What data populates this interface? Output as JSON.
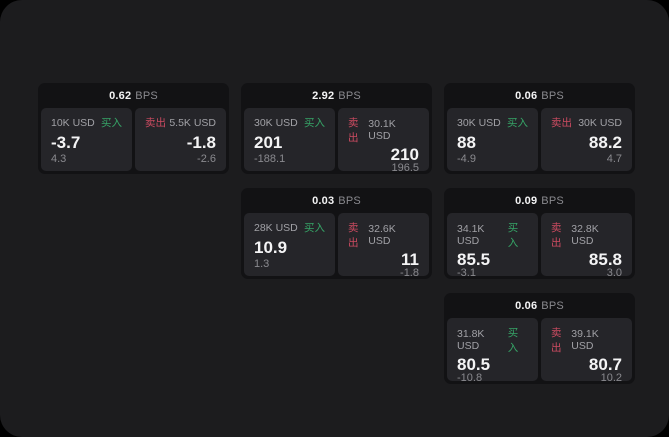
{
  "labels": {
    "bps": "BPS",
    "buy": "买入",
    "sell": "卖出"
  },
  "colors": {
    "page-bg": "#1c1c1e",
    "card-bg": "#121214",
    "panel-bg": "#252529",
    "text-white": "#f4f4f5",
    "text-gray": "#a1a1a6",
    "text-dim": "#8a8a8f",
    "buy-green": "#36a567",
    "sell-red": "#cd4b61"
  },
  "cards": [
    {
      "bps": "0.62",
      "buy": {
        "size": "10K USD",
        "value": "-3.7",
        "delta": "4.3"
      },
      "sell": {
        "size": "5.5K USD",
        "value": "-1.8",
        "delta": "-2.6"
      }
    },
    {
      "bps": "2.92",
      "buy": {
        "size": "30K USD",
        "value": "201",
        "delta": "-188.1"
      },
      "sell": {
        "size": "30.1K USD",
        "value": "210",
        "delta": "196.5"
      }
    },
    {
      "bps": "0.03",
      "buy": {
        "size": "28K USD",
        "value": "10.9",
        "delta": "1.3"
      },
      "sell": {
        "size": "32.6K USD",
        "value": "11",
        "delta": "-1.8"
      }
    },
    {
      "bps": "0.06",
      "buy": {
        "size": "30K USD",
        "value": "88",
        "delta": "-4.9"
      },
      "sell": {
        "size": "30K USD",
        "value": "88.2",
        "delta": "4.7"
      }
    },
    {
      "bps": "0.09",
      "buy": {
        "size": "34.1K USD",
        "value": "85.5",
        "delta": "-3.1"
      },
      "sell": {
        "size": "32.8K USD",
        "value": "85.8",
        "delta": "3.0"
      }
    },
    {
      "bps": "0.06",
      "buy": {
        "size": "31.8K USD",
        "value": "80.5",
        "delta": "-10.8"
      },
      "sell": {
        "size": "39.1K USD",
        "value": "80.7",
        "delta": "10.2"
      }
    }
  ]
}
